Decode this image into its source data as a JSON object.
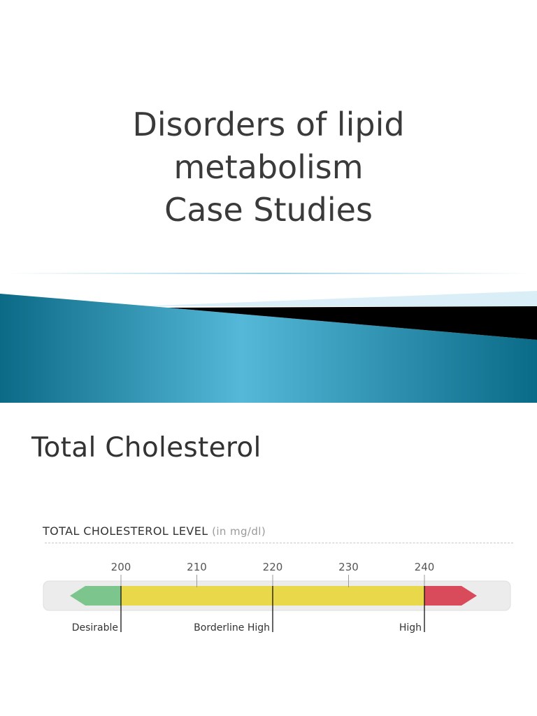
{
  "slide1": {
    "title_lines": [
      "Disorders of lipid",
      "metabolism",
      "Case Studies"
    ],
    "colors": {
      "banner_dark": "#0a6f8c",
      "banner_light": "#4fb3d6",
      "black_band": "#000000",
      "pale_band": "#d9eef6"
    }
  },
  "slide2": {
    "title": "Total Cholesterol",
    "scale_heading": "TOTAL CHOLESTEROL LEVEL",
    "scale_unit": "(in mg/dl)",
    "ticks": [
      "200",
      "210",
      "220",
      "230",
      "240"
    ],
    "tick_values": [
      200,
      210,
      220,
      230,
      240
    ],
    "range_labels": [
      "Desirable",
      "Borderline High",
      "High"
    ],
    "range_values": [
      200,
      220,
      240
    ],
    "colors": {
      "desirable": "#7cc68e",
      "borderline": "#e8d84a",
      "high": "#d94a5a",
      "track": "#ececec"
    }
  }
}
